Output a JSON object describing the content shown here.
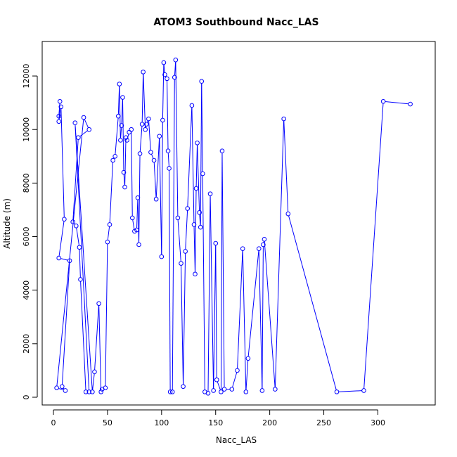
{
  "chart_data": {
    "type": "line",
    "title": "ATOM3 Southbound Nacc_LAS",
    "xlabel": "Nacc_LAS",
    "ylabel": "Altitude (m)",
    "xlim": [
      0,
      340
    ],
    "ylim": [
      0,
      13000
    ],
    "xticks": [
      0,
      50,
      100,
      150,
      200,
      250,
      300
    ],
    "yticks": [
      0,
      2000,
      4000,
      6000,
      8000,
      10000,
      12000
    ],
    "color": "#0000ff",
    "series": [
      {
        "points": [
          [
            5,
            10500
          ],
          [
            6,
            11050
          ],
          [
            5,
            10300
          ],
          [
            7,
            10850
          ],
          [
            10,
            6650
          ],
          [
            5,
            5200
          ],
          [
            15,
            5100
          ],
          [
            8,
            400
          ],
          [
            11,
            250
          ],
          [
            3,
            350
          ],
          [
            28,
            10450
          ],
          [
            33,
            10000
          ],
          [
            23,
            9700
          ],
          [
            18,
            6550
          ],
          [
            21,
            6400
          ],
          [
            24,
            5600
          ],
          [
            25,
            4400
          ],
          [
            30,
            200
          ],
          [
            33,
            200
          ],
          [
            20,
            10250
          ],
          [
            36,
            200
          ],
          [
            38,
            950
          ],
          [
            42,
            3500
          ],
          [
            44,
            200
          ],
          [
            45,
            300
          ],
          [
            48,
            350
          ],
          [
            50,
            5800
          ],
          [
            52,
            6450
          ],
          [
            55,
            8850
          ],
          [
            57,
            9000
          ],
          [
            60,
            10500
          ],
          [
            61,
            11700
          ],
          [
            62,
            9600
          ],
          [
            63,
            10150
          ],
          [
            64,
            11200
          ],
          [
            65,
            8400
          ],
          [
            66,
            7850
          ],
          [
            67,
            9700
          ],
          [
            68,
            9600
          ],
          [
            70,
            9900
          ],
          [
            72,
            10000
          ],
          [
            73,
            6700
          ],
          [
            75,
            6200
          ],
          [
            77,
            6250
          ],
          [
            78,
            7450
          ],
          [
            79,
            5700
          ],
          [
            80,
            9100
          ],
          [
            82,
            10200
          ],
          [
            83,
            12150
          ],
          [
            85,
            10000
          ],
          [
            86,
            10200
          ],
          [
            88,
            10400
          ],
          [
            90,
            9150
          ],
          [
            93,
            8850
          ],
          [
            95,
            7400
          ],
          [
            98,
            9750
          ],
          [
            100,
            5250
          ],
          [
            101,
            10350
          ],
          [
            102,
            12500
          ],
          [
            103,
            12050
          ],
          [
            105,
            11900
          ],
          [
            106,
            9200
          ],
          [
            107,
            8550
          ],
          [
            108,
            200
          ],
          [
            110,
            200
          ],
          [
            112,
            11950
          ],
          [
            113,
            12600
          ],
          [
            115,
            6700
          ],
          [
            118,
            5000
          ],
          [
            120,
            400
          ],
          [
            122,
            5450
          ],
          [
            124,
            7050
          ],
          [
            128,
            10900
          ],
          [
            130,
            6450
          ],
          [
            131,
            4600
          ],
          [
            132,
            7800
          ],
          [
            133,
            9500
          ],
          [
            135,
            6900
          ],
          [
            136,
            6350
          ],
          [
            137,
            11800
          ],
          [
            138,
            8350
          ],
          [
            140,
            200
          ],
          [
            143,
            150
          ],
          [
            145,
            7600
          ],
          [
            148,
            250
          ],
          [
            150,
            5750
          ],
          [
            151,
            650
          ],
          [
            155,
            200
          ],
          [
            156,
            9200
          ],
          [
            158,
            300
          ],
          [
            165,
            300
          ],
          [
            170,
            1000
          ],
          [
            175,
            5550
          ],
          [
            178,
            200
          ],
          [
            180,
            1450
          ],
          [
            190,
            5550
          ],
          [
            193,
            250
          ],
          [
            194,
            5700
          ],
          [
            195,
            5900
          ],
          [
            205,
            300
          ],
          [
            213,
            10400
          ],
          [
            217,
            6850
          ],
          [
            262,
            200
          ],
          [
            287,
            250
          ],
          [
            305,
            11050
          ],
          [
            330,
            10950
          ]
        ]
      }
    ]
  }
}
